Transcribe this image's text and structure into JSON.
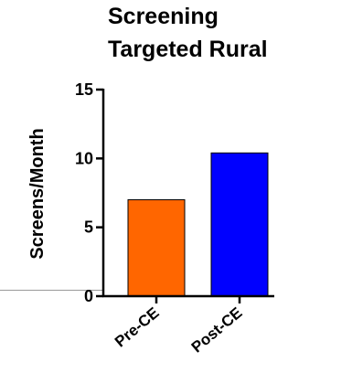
{
  "chart_data": {
    "type": "bar",
    "title": [
      "Screening",
      "Targeted Rural"
    ],
    "xlabel": "",
    "ylabel": "Screens/Month",
    "categories": [
      "Pre-CE",
      "Post-CE"
    ],
    "values": [
      7.0,
      10.4
    ],
    "colors": [
      "#ff6600",
      "#0000ff"
    ],
    "ylim": [
      0,
      15
    ],
    "yticks": [
      0,
      5,
      10,
      15
    ],
    "grid": false,
    "legend": "none"
  }
}
